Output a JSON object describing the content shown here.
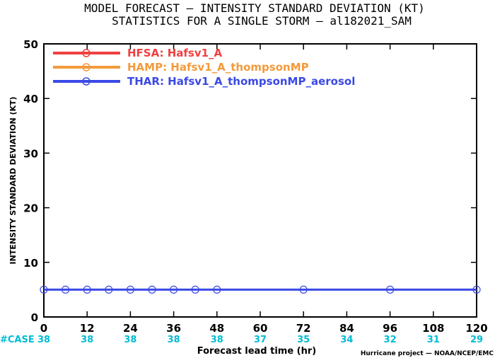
{
  "chart_data": {
    "type": "line",
    "title": "MODEL FORECAST — INTENSITY STANDARD DEVIATION (KT)",
    "subtitle": "STATISTICS FOR A SINGLE STORM — al182021_SAM",
    "xlabel": "Forecast lead time (hr)",
    "ylabel": "INTENSITY STANDARD DEVIATION (KT)",
    "xlim": [
      0,
      120
    ],
    "ylim": [
      0,
      50
    ],
    "x_ticks": [
      "0",
      "12",
      "24",
      "36",
      "48",
      "60",
      "72",
      "84",
      "96",
      "108",
      "120"
    ],
    "y_ticks": [
      "0",
      "10",
      "20",
      "30",
      "40",
      "50"
    ],
    "legend_placement": "top-left",
    "grid": false,
    "series": [
      {
        "name": "HFSA: Hafsv1_A",
        "color": "#f04040",
        "x": [],
        "y": []
      },
      {
        "name": "HAMP: Hafsv1_A_thompsonMP",
        "color": "#f39a3c",
        "x": [],
        "y": []
      },
      {
        "name": "THAR: Hafsv1_A_thompsonMP_aerosol",
        "color": "#3a49e6",
        "x": [
          0,
          6,
          12,
          18,
          24,
          30,
          36,
          42,
          48,
          72,
          96,
          120
        ],
        "y": [
          5,
          5,
          5,
          5,
          5,
          5,
          5,
          5,
          5,
          5,
          5,
          5
        ]
      }
    ],
    "case_label": "#CASE",
    "cases": {
      "x": [
        0,
        12,
        24,
        36,
        48,
        60,
        72,
        84,
        96,
        108,
        120
      ],
      "counts": [
        "38",
        "38",
        "38",
        "38",
        "38",
        "37",
        "35",
        "34",
        "32",
        "31",
        "29"
      ]
    },
    "credit": "Hurricane project — NOAA/NCEP/EMC"
  }
}
